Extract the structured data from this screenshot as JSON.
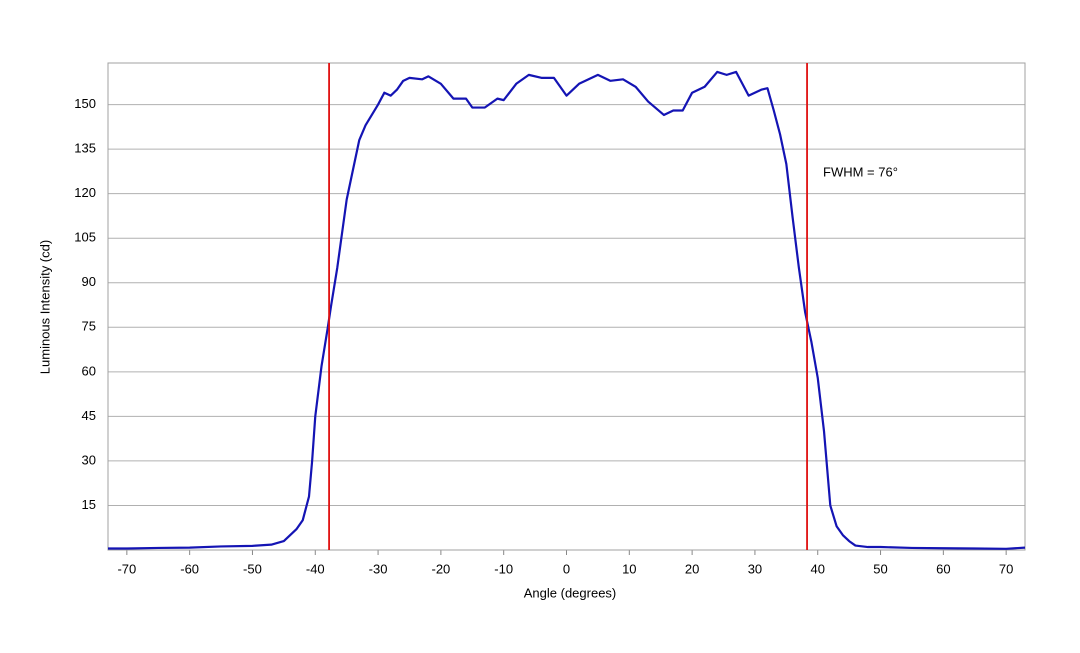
{
  "chart_data": {
    "type": "line",
    "x_label": "Angle (degrees)",
    "y_label": "Luminous Intensity (cd)",
    "annotation": "FWHM = 76°",
    "x": [
      -73,
      -70,
      -65,
      -60,
      -55,
      -50,
      -47,
      -45,
      -43,
      -42,
      -41,
      -40.5,
      -40,
      -39,
      -38,
      -37.5,
      -36.5,
      -35,
      -34,
      -33,
      -32,
      -30,
      -29,
      -28,
      -27,
      -26,
      -25,
      -23,
      -22,
      -20,
      -18,
      -16,
      -15,
      -13,
      -11,
      -10,
      -8,
      -6,
      -4,
      -2,
      0,
      2,
      5,
      7,
      9,
      11,
      13,
      15.5,
      17,
      18.5,
      20,
      22,
      24,
      25.5,
      27,
      29,
      31,
      32,
      33,
      34,
      35,
      36,
      37,
      38,
      39,
      40,
      41,
      42,
      43,
      44,
      45,
      46,
      48,
      50,
      55,
      60,
      65,
      70,
      73
    ],
    "series": [
      {
        "name": "Luminous Intensity",
        "color": "#1414b4",
        "values": [
          0.5,
          0.5,
          0.7,
          0.8,
          1.2,
          1.4,
          1.8,
          3,
          7,
          10,
          18,
          30,
          45,
          62,
          75,
          82,
          95,
          118,
          128,
          138,
          143,
          150,
          154,
          153,
          155,
          158,
          159,
          158.5,
          159.5,
          157,
          152,
          152,
          149,
          149,
          152,
          151.5,
          157,
          160,
          159,
          159,
          153,
          157,
          160,
          158,
          158.5,
          156,
          151,
          146.5,
          148,
          148,
          154,
          156,
          161,
          160,
          161,
          153,
          155,
          155.5,
          148,
          140,
          130,
          112,
          95,
          80,
          70,
          58,
          40,
          15,
          8,
          5,
          3,
          1.5,
          1,
          1,
          0.7,
          0.6,
          0.5,
          0.4,
          0.8
        ]
      }
    ],
    "xlim": [
      -73,
      73
    ],
    "ylim": [
      0,
      164
    ],
    "xticks": [
      -70,
      -60,
      -50,
      -40,
      -30,
      -20,
      -10,
      0,
      10,
      20,
      30,
      40,
      50,
      60,
      70
    ],
    "yticks": [
      15,
      30,
      45,
      60,
      75,
      90,
      105,
      120,
      135,
      150
    ],
    "vlines": [
      -37.8,
      38.3
    ],
    "vline_color": "#e01010",
    "grid": true
  }
}
